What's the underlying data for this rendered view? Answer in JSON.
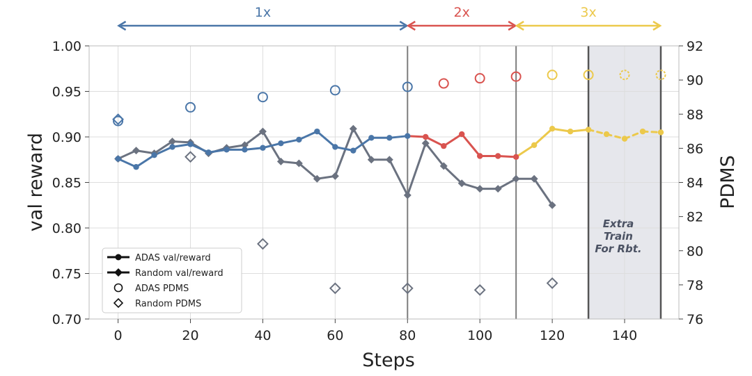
{
  "chart_data": {
    "type": "line",
    "xlabel": "Steps",
    "ylabel": "val reward",
    "y2label": "PDMS",
    "xlim": [
      -8,
      155
    ],
    "ylim": [
      0.7,
      1.0
    ],
    "y2lim": [
      76,
      92
    ],
    "xticks": [
      0,
      20,
      40,
      60,
      80,
      100,
      120,
      140
    ],
    "yticks": [
      0.7,
      0.75,
      0.8,
      0.85,
      0.9,
      0.95,
      1.0
    ],
    "y2ticks": [
      76,
      78,
      80,
      82,
      84,
      86,
      88,
      90,
      92
    ],
    "grid": true,
    "legend_position": "lower-left",
    "colors": {
      "blue": "#4a76a8",
      "red": "#d9534f",
      "yellow": "#ecc94b",
      "gray": "#6b7280",
      "shade": "#e6e7ec"
    },
    "phases": [
      {
        "label": "1x",
        "from": 0,
        "to": 80,
        "color": "#4a76a8"
      },
      {
        "label": "2x",
        "from": 80,
        "to": 110,
        "color": "#d9534f"
      },
      {
        "label": "3x",
        "from": 110,
        "to": 150,
        "color": "#ecc94b"
      }
    ],
    "vlines": [
      80,
      110,
      130,
      150
    ],
    "shaded_region": {
      "from": 130,
      "to": 150,
      "label_lines": [
        "Extra",
        "Train",
        "For Rbt."
      ]
    },
    "series": [
      {
        "name": "ADAS val/reward",
        "axis": "left",
        "marker": "circle-filled",
        "points": [
          [
            0,
            0.876
          ],
          [
            5,
            0.867
          ],
          [
            10,
            0.88
          ],
          [
            15,
            0.889
          ],
          [
            20,
            0.892
          ],
          [
            25,
            0.883
          ],
          [
            30,
            0.886
          ],
          [
            35,
            0.886
          ],
          [
            40,
            0.888
          ],
          [
            45,
            0.893
          ],
          [
            50,
            0.897
          ],
          [
            55,
            0.906
          ],
          [
            60,
            0.889
          ],
          [
            65,
            0.885
          ],
          [
            70,
            0.899
          ],
          [
            75,
            0.899
          ],
          [
            80,
            0.901
          ],
          [
            85,
            0.9
          ],
          [
            90,
            0.89
          ],
          [
            95,
            0.903
          ],
          [
            100,
            0.879
          ],
          [
            105,
            0.879
          ],
          [
            110,
            0.878
          ],
          [
            115,
            0.891
          ],
          [
            120,
            0.909
          ],
          [
            125,
            0.906
          ],
          [
            130,
            0.908
          ],
          [
            135,
            0.903
          ],
          [
            140,
            0.898
          ],
          [
            145,
            0.906
          ],
          [
            150,
            0.905
          ]
        ]
      },
      {
        "name": "Random val/reward",
        "axis": "left",
        "marker": "diamond-filled",
        "points": [
          [
            0,
            0.876
          ],
          [
            5,
            0.885
          ],
          [
            10,
            0.882
          ],
          [
            15,
            0.895
          ],
          [
            20,
            0.894
          ],
          [
            25,
            0.882
          ],
          [
            30,
            0.888
          ],
          [
            35,
            0.891
          ],
          [
            40,
            0.906
          ],
          [
            45,
            0.873
          ],
          [
            50,
            0.871
          ],
          [
            55,
            0.854
          ],
          [
            60,
            0.857
          ],
          [
            65,
            0.909
          ],
          [
            70,
            0.875
          ],
          [
            75,
            0.875
          ],
          [
            80,
            0.836
          ],
          [
            85,
            0.893
          ],
          [
            90,
            0.868
          ],
          [
            95,
            0.849
          ],
          [
            100,
            0.843
          ],
          [
            105,
            0.843
          ],
          [
            110,
            0.854
          ],
          [
            115,
            0.854
          ],
          [
            120,
            0.825
          ]
        ]
      },
      {
        "name": "ADAS PDMS",
        "axis": "right",
        "marker": "circle-open",
        "points": [
          [
            0,
            87.6
          ],
          [
            20,
            88.4
          ],
          [
            40,
            89.0
          ],
          [
            60,
            89.4
          ],
          [
            80,
            89.6
          ],
          [
            90,
            89.8
          ],
          [
            100,
            90.1
          ],
          [
            110,
            90.2
          ],
          [
            120,
            90.3
          ],
          [
            130,
            90.3
          ],
          [
            140,
            90.3
          ],
          [
            150,
            90.3
          ]
        ]
      },
      {
        "name": "Random PDMS",
        "axis": "right",
        "marker": "diamond-open",
        "points": [
          [
            0,
            87.7
          ],
          [
            20,
            85.5
          ],
          [
            40,
            80.4
          ],
          [
            60,
            77.8
          ],
          [
            80,
            77.8
          ],
          [
            100,
            77.7
          ],
          [
            120,
            78.1
          ]
        ]
      }
    ],
    "legend": [
      "ADAS val/reward",
      "Random val/reward",
      "ADAS PDMS",
      "Random PDMS"
    ]
  }
}
